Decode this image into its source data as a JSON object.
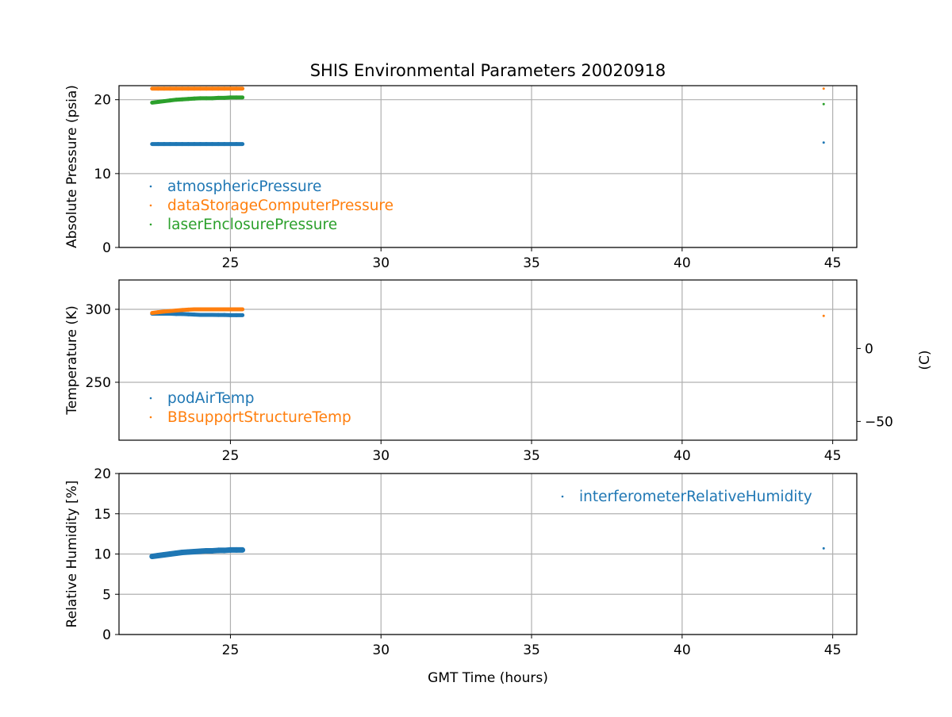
{
  "chart_data": [
    {
      "type": "scatter",
      "title": "SHIS Environmental Parameters 20020918",
      "xlabel": "",
      "ylabel": "Absolute Pressure (psia)",
      "xlim": [
        21.3,
        45.8
      ],
      "ylim": [
        0,
        21.9
      ],
      "xticks": [
        25,
        30,
        35,
        40,
        45
      ],
      "yticks": [
        0,
        10,
        20
      ],
      "grid": true,
      "legend_position": "lower-left",
      "series": [
        {
          "name": "atmosphericPressure",
          "color": "#1f77b4",
          "x": [
            22.4,
            22.6,
            22.8,
            23.0,
            23.2,
            23.4,
            23.6,
            23.8,
            24.0,
            24.2,
            24.4,
            24.6,
            24.8,
            25.0,
            25.2,
            25.4,
            44.7
          ],
          "y": [
            14.0,
            14.0,
            14.0,
            14.0,
            14.0,
            14.0,
            14.0,
            14.0,
            14.0,
            14.0,
            14.0,
            14.0,
            14.0,
            14.0,
            14.0,
            14.0,
            14.2
          ]
        },
        {
          "name": "dataStorageComputerPressure",
          "color": "#ff7f0e",
          "x": [
            22.4,
            22.6,
            22.8,
            23.0,
            23.2,
            23.4,
            23.6,
            23.8,
            24.0,
            24.2,
            24.4,
            24.6,
            24.8,
            25.0,
            25.2,
            25.4,
            44.7
          ],
          "y": [
            21.5,
            21.5,
            21.5,
            21.5,
            21.5,
            21.5,
            21.5,
            21.5,
            21.5,
            21.5,
            21.5,
            21.5,
            21.5,
            21.5,
            21.5,
            21.5,
            21.5
          ]
        },
        {
          "name": "laserEnclosurePressure",
          "color": "#2ca02c",
          "x": [
            22.4,
            22.6,
            22.8,
            23.0,
            23.2,
            23.4,
            23.6,
            23.8,
            24.0,
            24.2,
            24.4,
            24.6,
            24.8,
            25.0,
            25.2,
            25.4,
            44.7
          ],
          "y": [
            19.6,
            19.7,
            19.8,
            19.9,
            20.0,
            20.05,
            20.1,
            20.15,
            20.2,
            20.2,
            20.2,
            20.25,
            20.25,
            20.3,
            20.3,
            20.3,
            19.4
          ]
        }
      ]
    },
    {
      "type": "scatter",
      "xlabel": "",
      "ylabel": "Temperature (K)",
      "ylabel_right": "(C)",
      "xlim": [
        21.3,
        45.8
      ],
      "ylim": [
        210.3,
        320.1
      ],
      "xticks": [
        25,
        30,
        35,
        40,
        45
      ],
      "yticks": [
        250,
        300
      ],
      "yticks_right_c": [
        -50,
        0
      ],
      "grid": true,
      "legend_position": "lower-left",
      "series": [
        {
          "name": "podAirTemp",
          "color": "#1f77b4",
          "x": [
            22.4,
            22.6,
            22.8,
            23.0,
            23.2,
            23.4,
            23.6,
            23.8,
            24.0,
            24.2,
            24.4,
            24.6,
            24.8,
            25.0,
            25.2,
            25.4
          ],
          "y": [
            297.0,
            297.0,
            297.0,
            297.0,
            296.8,
            296.8,
            296.6,
            296.4,
            296.2,
            296.2,
            296.2,
            296.1,
            296.1,
            296.0,
            296.0,
            296.0
          ]
        },
        {
          "name": "BBsupportStructureTemp",
          "color": "#ff7f0e",
          "x": [
            22.4,
            22.6,
            22.8,
            23.0,
            23.2,
            23.4,
            23.6,
            23.8,
            24.0,
            24.2,
            24.4,
            24.6,
            24.8,
            25.0,
            25.2,
            25.4,
            44.7
          ],
          "y": [
            297.5,
            298.0,
            298.5,
            298.8,
            299.2,
            299.5,
            299.8,
            300.0,
            300.0,
            300.0,
            300.0,
            300.0,
            300.0,
            300.0,
            300.0,
            300.0,
            295.5
          ]
        }
      ]
    },
    {
      "type": "scatter",
      "xlabel": "GMT Time (hours)",
      "ylabel": "Relative Humidity [%]",
      "xlim": [
        21.3,
        45.8
      ],
      "ylim": [
        0,
        20
      ],
      "xticks": [
        25,
        30,
        35,
        40,
        45
      ],
      "yticks": [
        0,
        5,
        10,
        15,
        20
      ],
      "grid": true,
      "legend_position": "upper-right",
      "series": [
        {
          "name": "interferometerRelativeHumidity",
          "color": "#1f77b4",
          "x": [
            22.4,
            22.6,
            22.8,
            23.0,
            23.2,
            23.4,
            23.6,
            23.8,
            24.0,
            24.2,
            24.4,
            24.6,
            24.8,
            25.0,
            25.2,
            25.4,
            44.7
          ],
          "y": [
            9.7,
            9.8,
            9.9,
            10.0,
            10.1,
            10.2,
            10.25,
            10.3,
            10.35,
            10.4,
            10.4,
            10.45,
            10.45,
            10.5,
            10.5,
            10.5,
            10.7
          ]
        }
      ]
    }
  ]
}
